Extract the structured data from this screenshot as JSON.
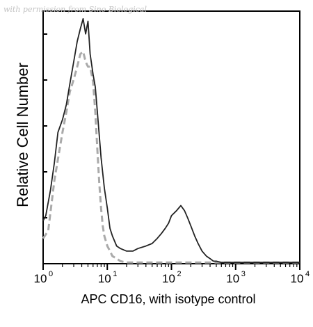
{
  "watermark": "with permission from Sino Biological",
  "chart_data": {
    "type": "line",
    "xlabel": "APC CD16, with isotype control",
    "ylabel": "Relative Cell Number",
    "x_scale": "log",
    "xlim": [
      1,
      10000
    ],
    "ylim": [
      0,
      100
    ],
    "x_ticks": [
      {
        "base": "10",
        "exp": "0",
        "value": 1
      },
      {
        "base": "10",
        "exp": "1",
        "value": 10
      },
      {
        "base": "10",
        "exp": "2",
        "value": 100
      },
      {
        "base": "10",
        "exp": "3",
        "value": 1000
      },
      {
        "base": "10",
        "exp": "4",
        "value": 10000
      }
    ],
    "grid": false,
    "legend": "none",
    "series": [
      {
        "style": "solid",
        "color": "#222222",
        "x": [
          1.0,
          1.1,
          1.3,
          1.5,
          1.7,
          2.0,
          2.3,
          2.6,
          3.0,
          3.4,
          3.8,
          4.2,
          4.6,
          5.0,
          5.4,
          6.0,
          6.5,
          7.0,
          8.0,
          9.0,
          10,
          11,
          12,
          14,
          16,
          20,
          25,
          30,
          40,
          50,
          60,
          70,
          80,
          90,
          100,
          120,
          140,
          160,
          180,
          200,
          230,
          260,
          300,
          350,
          400,
          450,
          500,
          600,
          800,
          1000,
          2000,
          5000,
          10000
        ],
        "y": [
          17,
          19,
          29,
          40,
          52,
          57,
          63,
          71,
          80,
          88,
          93,
          97,
          91,
          96,
          83,
          75,
          70,
          60,
          42,
          30,
          22,
          14,
          11,
          7,
          6,
          5,
          5,
          6,
          7,
          8,
          10,
          12,
          14,
          16,
          19,
          21,
          23,
          21,
          18,
          15,
          11,
          8,
          5,
          3,
          2,
          1,
          1,
          0.5,
          0.5,
          0.5,
          0.5,
          0.5,
          0.5
        ]
      },
      {
        "style": "dashed",
        "color": "#aaaaaa",
        "x": [
          1.0,
          1.2,
          1.5,
          1.8,
          2.0,
          2.3,
          2.6,
          3.0,
          3.4,
          3.8,
          4.2,
          4.6,
          5.0,
          5.4,
          6.0,
          6.5,
          7.0,
          7.5,
          8.0,
          8.5,
          9.0,
          10,
          11,
          12,
          14,
          16,
          20,
          25,
          30,
          40,
          60,
          100,
          1000,
          10000
        ],
        "y": [
          10,
          13,
          33,
          45,
          52,
          60,
          68,
          73,
          78,
          83,
          84,
          80,
          78,
          78,
          72,
          60,
          45,
          32,
          22,
          15,
          11,
          7,
          5,
          3,
          2,
          1,
          0.5,
          0.5,
          0.5,
          0.5,
          0.5,
          0.5,
          0.5,
          0.5
        ]
      }
    ]
  }
}
